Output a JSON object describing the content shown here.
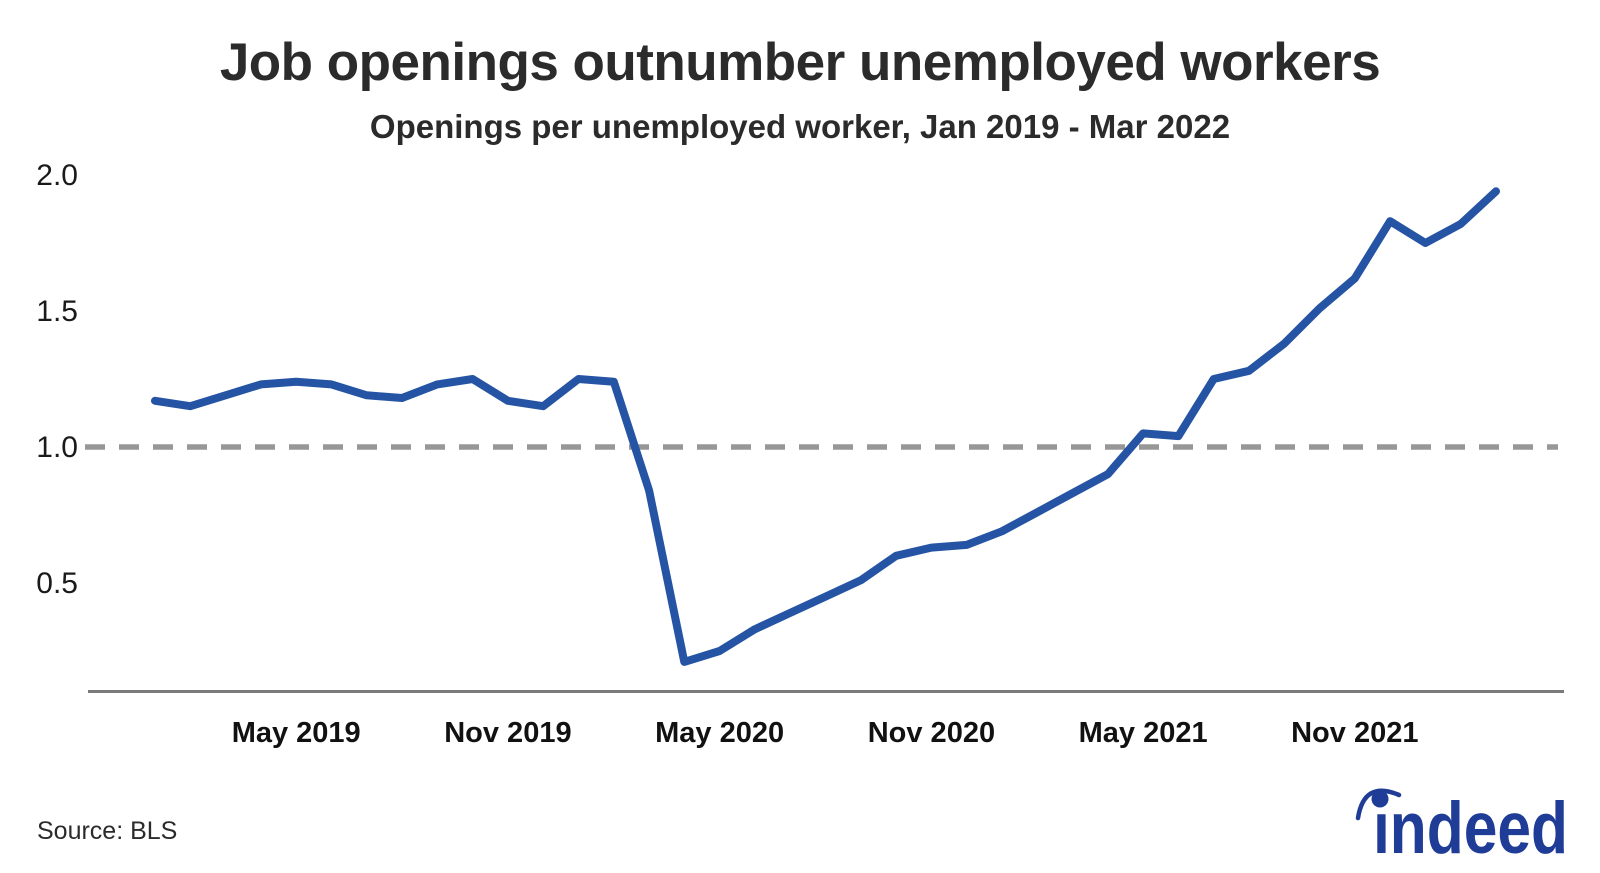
{
  "page": {
    "title": "Job openings outnumber unemployed workers",
    "subtitle": "Openings per unemployed worker, Jan 2019 - Mar 2022",
    "source": "Source: BLS",
    "logo_text": "indeed"
  },
  "colors": {
    "line": "#2554a4",
    "reference_dash": "#979797",
    "axis": "#7a7a7a",
    "title_text": "#2b2b2b",
    "tick_text": "#1a1a1a",
    "logo_blue": "#1f3c96",
    "background": "#ffffff"
  },
  "chart_data": {
    "type": "line",
    "title": "Job openings outnumber unemployed workers",
    "subtitle": "Openings per unemployed worker, Jan 2019 - Mar 2022",
    "source": "Source: BLS",
    "series_name": "Openings per unemployed worker",
    "x": [
      "Jan 2019",
      "Feb 2019",
      "Mar 2019",
      "Apr 2019",
      "May 2019",
      "Jun 2019",
      "Jul 2019",
      "Aug 2019",
      "Sep 2019",
      "Oct 2019",
      "Nov 2019",
      "Dec 2019",
      "Jan 2020",
      "Feb 2020",
      "Mar 2020",
      "Apr 2020",
      "May 2020",
      "Jun 2020",
      "Jul 2020",
      "Aug 2020",
      "Sep 2020",
      "Oct 2020",
      "Nov 2020",
      "Dec 2020",
      "Jan 2021",
      "Feb 2021",
      "Mar 2021",
      "Apr 2021",
      "May 2021",
      "Jun 2021",
      "Jul 2021",
      "Aug 2021",
      "Sep 2021",
      "Oct 2021",
      "Nov 2021",
      "Dec 2021",
      "Jan 2022",
      "Feb 2022",
      "Mar 2022"
    ],
    "values": [
      1.17,
      1.15,
      1.19,
      1.23,
      1.24,
      1.23,
      1.19,
      1.18,
      1.23,
      1.25,
      1.17,
      1.15,
      1.25,
      1.24,
      0.84,
      0.21,
      0.25,
      0.33,
      0.39,
      0.45,
      0.51,
      0.6,
      0.63,
      0.64,
      0.69,
      0.76,
      0.83,
      0.9,
      1.05,
      1.04,
      1.25,
      1.28,
      1.38,
      1.51,
      1.62,
      1.83,
      1.75,
      1.82,
      1.94
    ],
    "x_ticks": [
      {
        "label": "May 2019",
        "month_index": 4
      },
      {
        "label": "Nov 2019",
        "month_index": 10
      },
      {
        "label": "May 2020",
        "month_index": 16
      },
      {
        "label": "Nov 2020",
        "month_index": 22
      },
      {
        "label": "May 2021",
        "month_index": 28
      },
      {
        "label": "Nov 2021",
        "month_index": 34
      }
    ],
    "y_ticks": [
      {
        "label": "2.0",
        "value": 2.0
      },
      {
        "label": "1.5",
        "value": 1.5
      },
      {
        "label": "1.0",
        "value": 1.0
      },
      {
        "label": "0.5",
        "value": 0.5
      }
    ],
    "reference_line_value": 1.0,
    "ylim": [
      0.1,
      2.08
    ],
    "xlabel": "",
    "ylabel": "",
    "grid": "off",
    "legend": "none"
  }
}
